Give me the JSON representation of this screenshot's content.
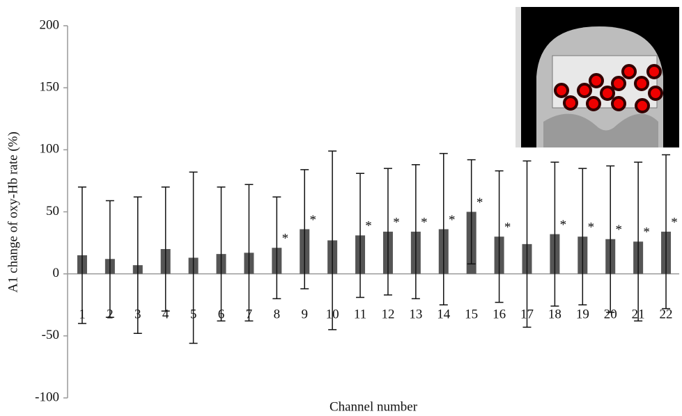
{
  "chart_data": {
    "type": "bar",
    "y_label": "A1 change of oxy-Hb rate (%)",
    "x_label": "Channel number",
    "categories": [
      "1",
      "2",
      "3",
      "4",
      "5",
      "6",
      "7",
      "8",
      "9",
      "10",
      "11",
      "12",
      "13",
      "14",
      "15",
      "16",
      "17",
      "18",
      "19",
      "20",
      "21",
      "22"
    ],
    "values": [
      15,
      12,
      7,
      20,
      13,
      16,
      17,
      21,
      36,
      27,
      31,
      34,
      34,
      36,
      50,
      30,
      24,
      32,
      30,
      28,
      26,
      34
    ],
    "errors": [
      55,
      47,
      55,
      50,
      69,
      54,
      55,
      41,
      48,
      72,
      50,
      51,
      54,
      61,
      42,
      53,
      67,
      58,
      55,
      59,
      64,
      62
    ],
    "markers": [
      null,
      null,
      null,
      null,
      null,
      null,
      null,
      "*",
      "*",
      null,
      "*",
      "*",
      "*",
      "*",
      "*",
      "*",
      null,
      "*",
      "*",
      "*",
      "*",
      "*"
    ],
    "color": "#555555",
    "ylim": [
      -100,
      200
    ],
    "yticks": [
      -100,
      -50,
      0,
      50,
      100,
      150,
      200
    ],
    "grid": false
  }
}
